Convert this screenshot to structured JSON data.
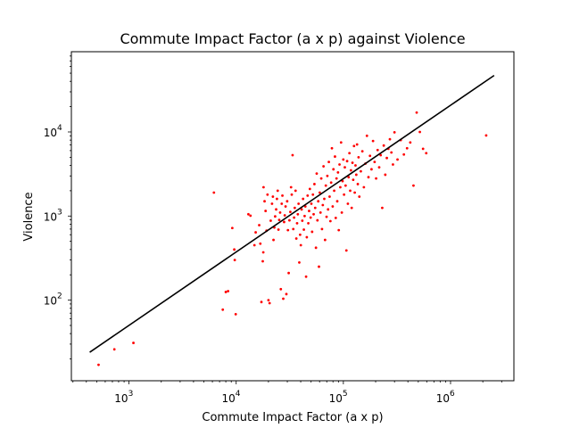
{
  "chart_data": {
    "type": "scatter",
    "title": "Commute Impact Factor (a x p) against Violence",
    "xlabel": "Commute Impact Factor (a x p)",
    "ylabel": "Violence",
    "xscale": "log",
    "yscale": "log",
    "xlim": [
      290,
      3900000
    ],
    "ylim": [
      11,
      90000
    ],
    "x_ticks": [
      {
        "value": 1000,
        "base": "10",
        "exp": "3"
      },
      {
        "value": 10000,
        "base": "10",
        "exp": "4"
      },
      {
        "value": 100000,
        "base": "10",
        "exp": "5"
      },
      {
        "value": 1000000,
        "base": "10",
        "exp": "6"
      }
    ],
    "y_ticks": [
      {
        "value": 100,
        "base": "10",
        "exp": "2"
      },
      {
        "value": 1000,
        "base": "10",
        "exp": "3"
      },
      {
        "value": 10000,
        "base": "10",
        "exp": "4"
      }
    ],
    "grid": false,
    "legend": "none",
    "series": [
      {
        "kind": "points",
        "color": "#ff0000",
        "points": [
          [
            520,
            17
          ],
          [
            730,
            26
          ],
          [
            1100,
            31
          ],
          [
            6200,
            1900
          ],
          [
            7500,
            77
          ],
          [
            8000,
            125
          ],
          [
            8400,
            128
          ],
          [
            9200,
            720
          ],
          [
            9600,
            400
          ],
          [
            9700,
            300
          ],
          [
            9900,
            68
          ],
          [
            13000,
            1050
          ],
          [
            13600,
            1010
          ],
          [
            14800,
            450
          ],
          [
            15200,
            640
          ],
          [
            16400,
            780
          ],
          [
            16800,
            470
          ],
          [
            17200,
            95
          ],
          [
            17700,
            290
          ],
          [
            17900,
            370
          ],
          [
            18000,
            2200
          ],
          [
            18400,
            1500
          ],
          [
            18800,
            1150
          ],
          [
            19200,
            670
          ],
          [
            19600,
            1800
          ],
          [
            20000,
            100
          ],
          [
            20500,
            92
          ],
          [
            21000,
            880
          ],
          [
            21600,
            1400
          ],
          [
            22000,
            1700
          ],
          [
            22300,
            520
          ],
          [
            22700,
            730
          ],
          [
            23100,
            990
          ],
          [
            23600,
            1200
          ],
          [
            24000,
            1600
          ],
          [
            24400,
            2000
          ],
          [
            24800,
            690
          ],
          [
            25200,
            900
          ],
          [
            25700,
            1100
          ],
          [
            26100,
            135
          ],
          [
            26600,
            1400
          ],
          [
            27000,
            1750
          ],
          [
            27500,
            104
          ],
          [
            28000,
            850
          ],
          [
            28400,
            1020
          ],
          [
            28900,
            1300
          ],
          [
            29400,
            118
          ],
          [
            29900,
            1500
          ],
          [
            30400,
            680
          ],
          [
            30900,
            210
          ],
          [
            31400,
            890
          ],
          [
            32000,
            1120
          ],
          [
            32500,
            2200
          ],
          [
            33000,
            1800
          ],
          [
            33600,
            5300
          ],
          [
            34100,
            700
          ],
          [
            34700,
            960
          ],
          [
            35200,
            1250
          ],
          [
            35800,
            2000
          ],
          [
            36400,
            540
          ],
          [
            37000,
            820
          ],
          [
            37600,
            1050
          ],
          [
            38200,
            1400
          ],
          [
            38800,
            280
          ],
          [
            39500,
            600
          ],
          [
            40100,
            450
          ],
          [
            40800,
            1200
          ],
          [
            41400,
            880
          ],
          [
            42100,
            1600
          ],
          [
            42800,
            690
          ],
          [
            43500,
            1000
          ],
          [
            44200,
            1300
          ],
          [
            44900,
            190
          ],
          [
            45600,
            560
          ],
          [
            46400,
            1750
          ],
          [
            47100,
            820
          ],
          [
            47900,
            1150
          ],
          [
            48700,
            2100
          ],
          [
            49500,
            960
          ],
          [
            50300,
            1400
          ],
          [
            51100,
            650
          ],
          [
            52000,
            1800
          ],
          [
            52800,
            1050
          ],
          [
            53700,
            2400
          ],
          [
            54600,
            1250
          ],
          [
            55500,
            420
          ],
          [
            56400,
            3200
          ],
          [
            57300,
            890
          ],
          [
            58300,
            1500
          ],
          [
            59200,
            250
          ],
          [
            60200,
            1900
          ],
          [
            61200,
            1100
          ],
          [
            62200,
            2800
          ],
          [
            63200,
            700
          ],
          [
            64300,
            1350
          ],
          [
            65300,
            3900
          ],
          [
            66400,
            1600
          ],
          [
            67500,
            520
          ],
          [
            68600,
            2300
          ],
          [
            69700,
            980
          ],
          [
            70900,
            3000
          ],
          [
            72000,
            1200
          ],
          [
            73200,
            4400
          ],
          [
            74400,
            1700
          ],
          [
            75700,
            870
          ],
          [
            76900,
            2500
          ],
          [
            78200,
            6400
          ],
          [
            79500,
            1300
          ],
          [
            80800,
            3600
          ],
          [
            82100,
            2000
          ],
          [
            83500,
            5100
          ],
          [
            84900,
            950
          ],
          [
            86300,
            2800
          ],
          [
            87700,
            1500
          ],
          [
            89100,
            3300
          ],
          [
            90600,
            680
          ],
          [
            92100,
            4100
          ],
          [
            93600,
            2200
          ],
          [
            95200,
            7500
          ],
          [
            96700,
            1100
          ],
          [
            98300,
            2600
          ],
          [
            99900,
            4700
          ],
          [
            101500,
            1800
          ],
          [
            103200,
            3800
          ],
          [
            104900,
            2300
          ],
          [
            106700,
            390
          ],
          [
            108400,
            4500
          ],
          [
            110200,
            1400
          ],
          [
            112000,
            2900
          ],
          [
            113900,
            5600
          ],
          [
            115800,
            2000
          ],
          [
            117700,
            3500
          ],
          [
            119600,
            1250
          ],
          [
            121600,
            4300
          ],
          [
            123600,
            2700
          ],
          [
            125700,
            6800
          ],
          [
            127700,
            1900
          ],
          [
            129800,
            4000
          ],
          [
            132000,
            3100
          ],
          [
            134200,
            7100
          ],
          [
            136400,
            2400
          ],
          [
            138600,
            5000
          ],
          [
            140900,
            1700
          ],
          [
            145500,
            3400
          ],
          [
            150400,
            5900
          ],
          [
            155400,
            2200
          ],
          [
            160600,
            4200
          ],
          [
            165900,
            9000
          ],
          [
            171500,
            2900
          ],
          [
            177200,
            5200
          ],
          [
            183100,
            3600
          ],
          [
            189200,
            7800
          ],
          [
            195600,
            4400
          ],
          [
            202100,
            2800
          ],
          [
            208800,
            6100
          ],
          [
            215800,
            3800
          ],
          [
            223000,
            5300
          ],
          [
            230500,
            1250
          ],
          [
            238200,
            6900
          ],
          [
            246200,
            3100
          ],
          [
            254400,
            4900
          ],
          [
            262900,
            6300
          ],
          [
            271700,
            8200
          ],
          [
            280800,
            5700
          ],
          [
            290200,
            4100
          ],
          [
            299900,
            9900
          ],
          [
            320000,
            4700
          ],
          [
            343000,
            8000
          ],
          [
            367000,
            5400
          ],
          [
            393000,
            6400
          ],
          [
            421000,
            7500
          ],
          [
            451000,
            2300
          ],
          [
            483000,
            17000
          ],
          [
            517000,
            10000
          ],
          [
            554000,
            6300
          ],
          [
            593000,
            5600
          ],
          [
            2150000,
            9100
          ]
        ]
      },
      {
        "kind": "line",
        "color": "#000000",
        "points": [
          [
            430,
            24
          ],
          [
            2550000,
            47000
          ]
        ]
      }
    ]
  }
}
